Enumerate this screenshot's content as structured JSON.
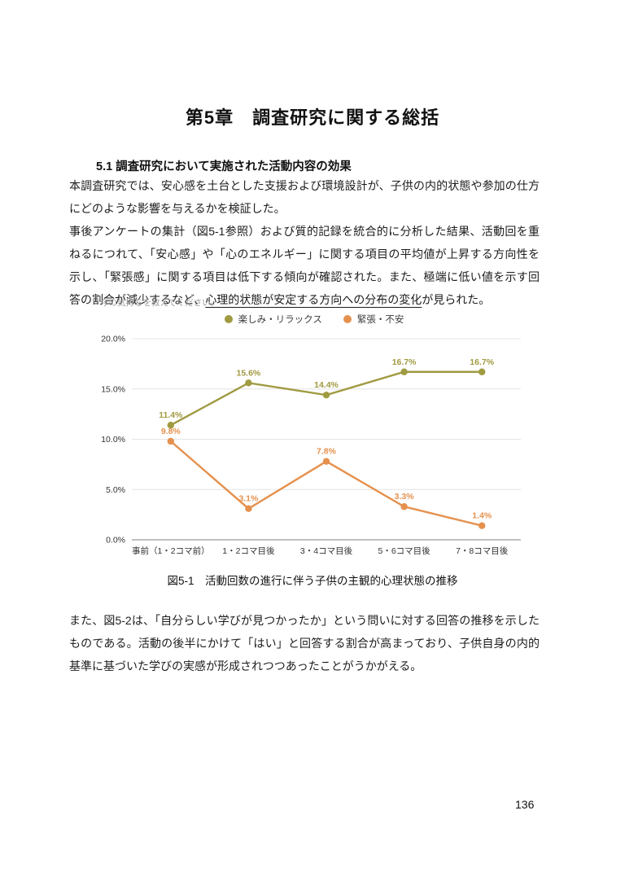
{
  "page": {
    "chapter_title": "第5章　調査研究に関する総括",
    "section_heading": "5.1 調査研究において実施された活動内容の効果",
    "paragraph1": "本調査研究では、安心感を土台とした支援および環境設計が、子供の内的状態や参加の仕方にどのような影響を与えるかを検証した。",
    "paragraph2_pre": "事後アンケートの集計（図5-1参照）および質的記録を統合的に分析した結果、活動回を重ねるにつれて、「安心感」や「心のエネルギー」に関する項目の平均値が上昇する方向性を示し、「緊張感」に関する項目は低下する傾向が確認された。また、極端に低い値を示す回答の割合が減少するなど、",
    "paragraph2_underlined": "心理的状態が安定する方向への分布の変化",
    "paragraph2_post": "が見られた。",
    "figure_caption": "図5-1　活動回数の進行に伴う子供の主観的心理状態の推移",
    "paragraph3": "また、図5-2は、「自分らしい学びが見つかったか」という問いに対する回答の推移を示したものである。活動の後半にかけて「はい」と回答する割合が高まっており、子供自身の内的基準に基づいた学びの実感が形成されつつあったことがうかがえる。",
    "page_number": "136"
  },
  "chart_data": {
    "type": "line",
    "title": "今の気持ちを教えてください。",
    "categories": [
      "事前（1・2コマ前）",
      "1・2コマ目後",
      "3・4コマ目後",
      "5・6コマ目後",
      "7・8コマ目後"
    ],
    "series": [
      {
        "name": "楽しみ・リラックス",
        "color": "#a09a41",
        "values": [
          11.4,
          15.6,
          14.4,
          16.7,
          16.7
        ]
      },
      {
        "name": "緊張・不安",
        "color": "#e5914e",
        "values": [
          9.8,
          3.1,
          7.8,
          3.3,
          1.4
        ]
      }
    ],
    "yticks": [
      "0.0%",
      "5.0%",
      "10.0%",
      "15.0%",
      "20.0%"
    ],
    "ylim": [
      0,
      20
    ],
    "grid": true,
    "legend_position": "top",
    "data_labels": true,
    "data_label_format": "percent-1dp",
    "axis_label_color": "#333333",
    "gridline_color": "#e4e4e4",
    "baseline_color": "#9b9b9b"
  }
}
